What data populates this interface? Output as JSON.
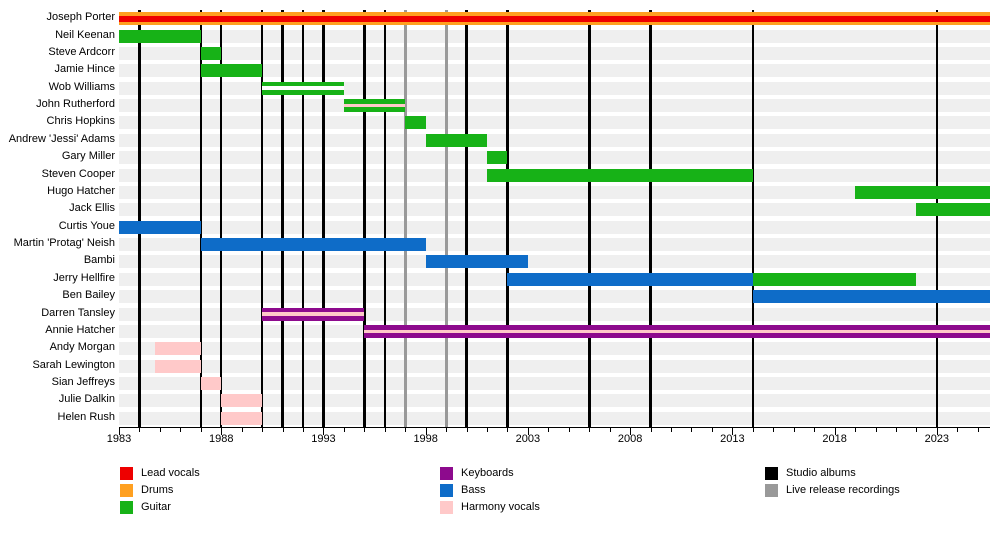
{
  "chart_data": {
    "type": "bar",
    "variant": "band-membership-timeline-gantt",
    "title": "",
    "xlabel": "",
    "ylabel": "",
    "x_axis": {
      "start": 1983,
      "end": 2025.6,
      "major_ticks": [
        1983,
        1988,
        1993,
        1998,
        2003,
        2008,
        2013,
        2018,
        2023
      ],
      "minor_tick_step": 1,
      "minor_tick_first": 1983,
      "minor_tick_last": 2025
    },
    "row_track_color": "#efefef",
    "roles": {
      "lead_vocals": "#ee0000",
      "drums": "#ffa020",
      "guitar": "#17b217",
      "keyboards": "#8d0a8d",
      "bass": "#0e6cc8",
      "harmony_vocals": "#ffc9c9",
      "white": "#ffffff"
    },
    "event_colors": {
      "studio_albums": "#000000",
      "live_release_recordings": "#999999"
    },
    "events": {
      "studio_albums": [
        1984,
        1987,
        1988,
        1990,
        1991,
        1992,
        1993,
        1995,
        1996,
        2000,
        2002,
        2006,
        2009,
        2014,
        2023
      ],
      "live_release_recordings": [
        1997,
        1999
      ]
    },
    "members": [
      {
        "name": "Joseph Porter",
        "bars": [
          {
            "start": 1983,
            "end": 2025.6,
            "role": "drums",
            "stripe": "lead_vocals",
            "stripe_h": 6
          }
        ]
      },
      {
        "name": "Neil Keenan",
        "bars": [
          {
            "start": 1983,
            "end": 1987,
            "role": "guitar"
          }
        ]
      },
      {
        "name": "Steve Ardcorr",
        "bars": [
          {
            "start": 1987,
            "end": 1988,
            "role": "guitar"
          }
        ]
      },
      {
        "name": "Jamie Hince",
        "bars": [
          {
            "start": 1987,
            "end": 1990,
            "role": "guitar"
          }
        ]
      },
      {
        "name": "Wob Williams",
        "bars": [
          {
            "start": 1990,
            "end": 1994,
            "role": "guitar",
            "stripe": "white",
            "stripe_h": 3.5
          }
        ]
      },
      {
        "name": "John Rutherford",
        "bars": [
          {
            "start": 1994,
            "end": 1997,
            "role": "guitar",
            "stripe": "harmony_vocals",
            "stripe_h": 3.5
          }
        ]
      },
      {
        "name": "Chris Hopkins",
        "bars": [
          {
            "start": 1997,
            "end": 1998,
            "role": "guitar"
          }
        ]
      },
      {
        "name": "Andrew 'Jessi' Adams",
        "bars": [
          {
            "start": 1998,
            "end": 2001,
            "role": "guitar"
          }
        ]
      },
      {
        "name": "Gary Miller",
        "bars": [
          {
            "start": 2001,
            "end": 2002,
            "role": "guitar"
          }
        ]
      },
      {
        "name": "Steven Cooper",
        "bars": [
          {
            "start": 2001,
            "end": 2014,
            "role": "guitar"
          }
        ]
      },
      {
        "name": "Hugo Hatcher",
        "bars": [
          {
            "start": 2019,
            "end": 2025.6,
            "role": "guitar"
          }
        ]
      },
      {
        "name": "Jack Ellis",
        "bars": [
          {
            "start": 2022,
            "end": 2025.6,
            "role": "guitar"
          }
        ]
      },
      {
        "name": "Curtis Youe",
        "bars": [
          {
            "start": 1983,
            "end": 1987,
            "role": "bass"
          }
        ]
      },
      {
        "name": "Martin 'Protag' Neish",
        "bars": [
          {
            "start": 1987,
            "end": 1998,
            "role": "bass"
          }
        ]
      },
      {
        "name": "Bambi",
        "bars": [
          {
            "start": 1998,
            "end": 2003,
            "role": "bass"
          }
        ]
      },
      {
        "name": "Jerry Hellfire",
        "bars": [
          {
            "start": 2002,
            "end": 2014,
            "role": "bass"
          },
          {
            "start": 2014,
            "end": 2022,
            "role": "guitar"
          }
        ]
      },
      {
        "name": "Ben Bailey",
        "bars": [
          {
            "start": 2014,
            "end": 2025.6,
            "role": "bass"
          }
        ]
      },
      {
        "name": "Darren Tansley",
        "bars": [
          {
            "start": 1990,
            "end": 1995,
            "role": "keyboards",
            "stripe": "harmony_vocals",
            "stripe_h": 3.5
          }
        ]
      },
      {
        "name": "Annie Hatcher",
        "bars": [
          {
            "start": 1995,
            "end": 2025.6,
            "role": "keyboards",
            "stripe": "harmony_vocals",
            "stripe_h": 3.5
          }
        ]
      },
      {
        "name": "Andy Morgan",
        "bars": [
          {
            "start": 1984.75,
            "end": 1987,
            "role": "harmony_vocals"
          }
        ]
      },
      {
        "name": "Sarah Lewington",
        "bars": [
          {
            "start": 1984.75,
            "end": 1987,
            "role": "harmony_vocals"
          }
        ]
      },
      {
        "name": "Sian Jeffreys",
        "bars": [
          {
            "start": 1987,
            "end": 1988,
            "role": "harmony_vocals"
          }
        ]
      },
      {
        "name": "Julie Dalkin",
        "bars": [
          {
            "start": 1988,
            "end": 1990,
            "role": "harmony_vocals"
          }
        ]
      },
      {
        "name": "Helen Rush",
        "bars": [
          {
            "start": 1988,
            "end": 1990,
            "role": "harmony_vocals"
          }
        ]
      }
    ],
    "legend": {
      "columns": [
        {
          "items": [
            {
              "label": "Lead vocals",
              "color": "#ee0000"
            },
            {
              "label": "Drums",
              "color": "#ffa020"
            },
            {
              "label": "Guitar",
              "color": "#17b217"
            }
          ]
        },
        {
          "items": [
            {
              "label": "Keyboards",
              "color": "#8d0a8d"
            },
            {
              "label": "Bass",
              "color": "#0e6cc8"
            },
            {
              "label": "Harmony vocals",
              "color": "#ffc9c9"
            }
          ]
        },
        {
          "items": [
            {
              "label": "Studio albums",
              "color": "#000000"
            },
            {
              "label": "Live release recordings",
              "color": "#999999"
            }
          ]
        }
      ]
    }
  }
}
